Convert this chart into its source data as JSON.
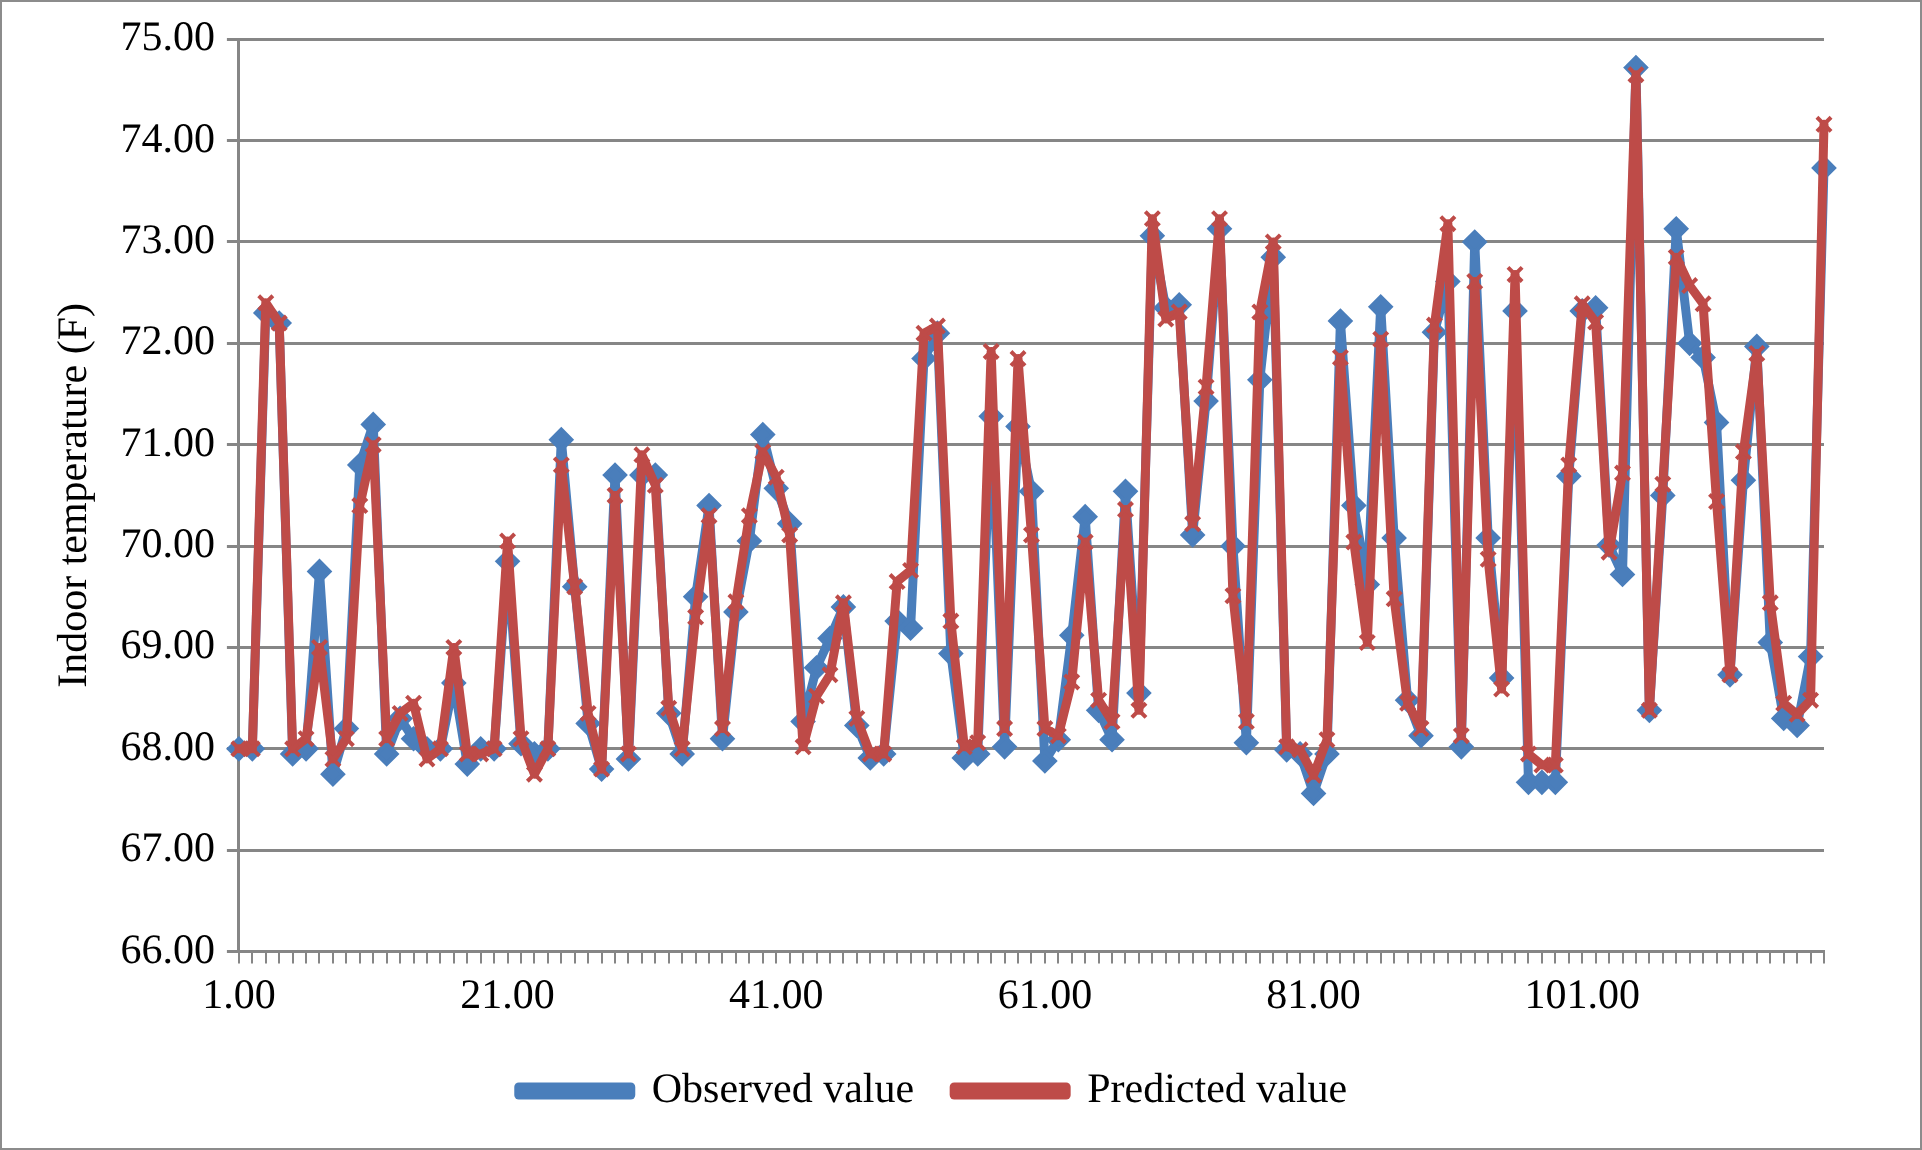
{
  "chart_data": {
    "type": "line",
    "ylabel": "Indoor temperature (F)",
    "categories": [
      "1.00",
      null,
      null,
      null,
      null,
      null,
      null,
      null,
      null,
      null,
      null,
      null,
      null,
      null,
      null,
      null,
      null,
      null,
      null,
      null,
      "21.00",
      null,
      null,
      null,
      null,
      null,
      null,
      null,
      null,
      null,
      null,
      null,
      null,
      null,
      null,
      null,
      null,
      null,
      null,
      null,
      "41.00",
      null,
      null,
      null,
      null,
      null,
      null,
      null,
      null,
      null,
      null,
      null,
      null,
      null,
      null,
      null,
      null,
      null,
      null,
      null,
      "61.00",
      null,
      null,
      null,
      null,
      null,
      null,
      null,
      null,
      null,
      null,
      null,
      null,
      null,
      null,
      null,
      null,
      null,
      null,
      null,
      "81.00",
      null,
      null,
      null,
      null,
      null,
      null,
      null,
      null,
      null,
      null,
      null,
      null,
      null,
      null,
      null,
      null,
      null,
      null,
      null,
      "101.00",
      null,
      null,
      null,
      null,
      null,
      null,
      null,
      null,
      null,
      null,
      null,
      null,
      null,
      null,
      null,
      null,
      null,
      null
    ],
    "series": [
      {
        "name": "Observed value",
        "color": "#4a7ebb",
        "marker": "diamond",
        "values": [
          68.0,
          68.0,
          72.3,
          72.2,
          67.95,
          68.0,
          69.75,
          67.75,
          68.2,
          70.8,
          71.2,
          67.95,
          68.3,
          68.1,
          68.0,
          68.0,
          68.65,
          67.85,
          68.0,
          68.0,
          69.85,
          68.05,
          67.95,
          68.0,
          71.05,
          69.6,
          68.25,
          67.8,
          70.7,
          67.9,
          70.7,
          70.7,
          68.35,
          67.95,
          69.5,
          70.4,
          68.1,
          69.35,
          70.05,
          71.1,
          70.57,
          70.22,
          68.27,
          68.8,
          69.09,
          69.4,
          68.23,
          67.91,
          67.95,
          69.26,
          69.19,
          71.85,
          72.1,
          68.94,
          67.91,
          67.95,
          71.28,
          68.02,
          71.18,
          70.54,
          67.88,
          68.09,
          69.12,
          70.29,
          68.38,
          68.09,
          70.54,
          68.55,
          73.06,
          72.35,
          72.38,
          70.11,
          71.43,
          73.13,
          70.0,
          68.06,
          71.64,
          72.85,
          67.99,
          67.95,
          67.56,
          67.95,
          72.22,
          70.4,
          69.62,
          72.36,
          70.08,
          68.48,
          68.13,
          72.11,
          72.61,
          68.02,
          73.0,
          70.08,
          68.7,
          72.32,
          67.67,
          67.67,
          67.67,
          70.69,
          72.32,
          72.35,
          70.01,
          69.72,
          74.72,
          68.38,
          70.5,
          73.13,
          72.0,
          71.86,
          71.22,
          68.73,
          70.65,
          71.97,
          69.05,
          68.3,
          68.23,
          68.91,
          73.73
        ]
      },
      {
        "name": "Predicted value",
        "color": "#be4b48",
        "marker": "cross",
        "values": [
          68.0,
          68.0,
          72.4,
          72.2,
          68.0,
          68.1,
          69.0,
          67.9,
          68.1,
          70.4,
          71.0,
          68.1,
          68.35,
          68.45,
          67.9,
          68.0,
          69.0,
          67.95,
          67.95,
          68.0,
          70.05,
          68.1,
          67.75,
          68.0,
          70.8,
          69.6,
          68.35,
          67.8,
          70.5,
          67.95,
          70.9,
          70.6,
          68.4,
          68.0,
          69.3,
          70.3,
          68.2,
          69.45,
          70.3,
          70.93,
          70.68,
          70.11,
          68.02,
          68.52,
          68.73,
          69.44,
          68.3,
          67.95,
          67.95,
          69.65,
          69.76,
          72.1,
          72.17,
          69.26,
          68.02,
          68.06,
          71.92,
          68.2,
          71.85,
          70.11,
          68.2,
          68.13,
          68.66,
          70.04,
          68.48,
          68.27,
          70.36,
          68.38,
          73.23,
          72.24,
          72.31,
          70.22,
          71.57,
          73.23,
          69.51,
          68.27,
          72.31,
          73.0,
          68.02,
          67.99,
          67.74,
          68.09,
          71.86,
          70.04,
          69.05,
          72.04,
          69.48,
          68.45,
          68.2,
          72.18,
          73.18,
          68.13,
          72.61,
          69.87,
          68.59,
          72.68,
          67.95,
          67.84,
          67.84,
          70.8,
          72.39,
          72.21,
          69.94,
          70.72,
          74.65,
          68.38,
          70.61,
          72.85,
          72.57,
          72.39,
          70.44,
          68.73,
          70.93,
          71.9,
          69.44,
          68.45,
          68.34,
          68.48,
          74.16
        ]
      }
    ],
    "ylim": [
      66,
      75
    ],
    "yticks": [
      {
        "value": 66,
        "label": "66.00"
      },
      {
        "value": 67,
        "label": "67.00"
      },
      {
        "value": 68,
        "label": "68.00"
      },
      {
        "value": 69,
        "label": "69.00"
      },
      {
        "value": 70,
        "label": "70.00"
      },
      {
        "value": 71,
        "label": "71.00"
      },
      {
        "value": 72,
        "label": "72.00"
      },
      {
        "value": 73,
        "label": "73.00"
      },
      {
        "value": 74,
        "label": "74.00"
      },
      {
        "value": 75,
        "label": "75.00"
      }
    ],
    "grid": "y",
    "legend": "bottom",
    "line_style": "solid"
  }
}
